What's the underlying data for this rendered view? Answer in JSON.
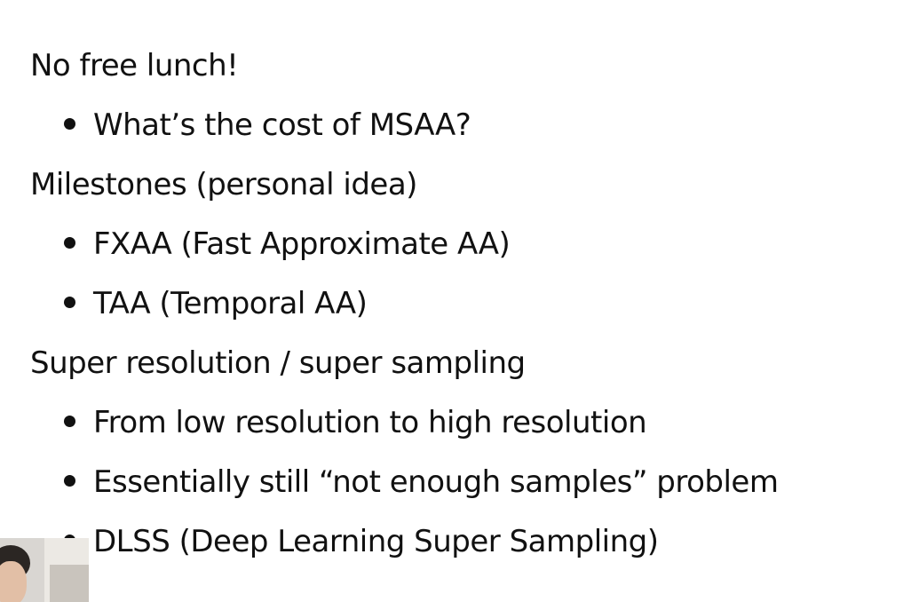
{
  "slide": {
    "items": [
      {
        "type": "heading",
        "text": "No free lunch!"
      },
      {
        "type": "bullet",
        "text": "What’s the cost of MSAA?"
      },
      {
        "type": "heading",
        "text": "Milestones (personal idea)"
      },
      {
        "type": "bullet",
        "text": "FXAA (Fast Approximate AA)"
      },
      {
        "type": "bullet",
        "text": "TAA (Temporal AA)"
      },
      {
        "type": "heading",
        "text": "Super resolution / super sampling"
      },
      {
        "type": "bullet",
        "text": "From low resolution to high resolution"
      },
      {
        "type": "bullet",
        "text": "Essentially still “not enough samples” problem"
      },
      {
        "type": "bullet",
        "text": "DLSS (Deep Learning Super Sampling)"
      }
    ]
  }
}
